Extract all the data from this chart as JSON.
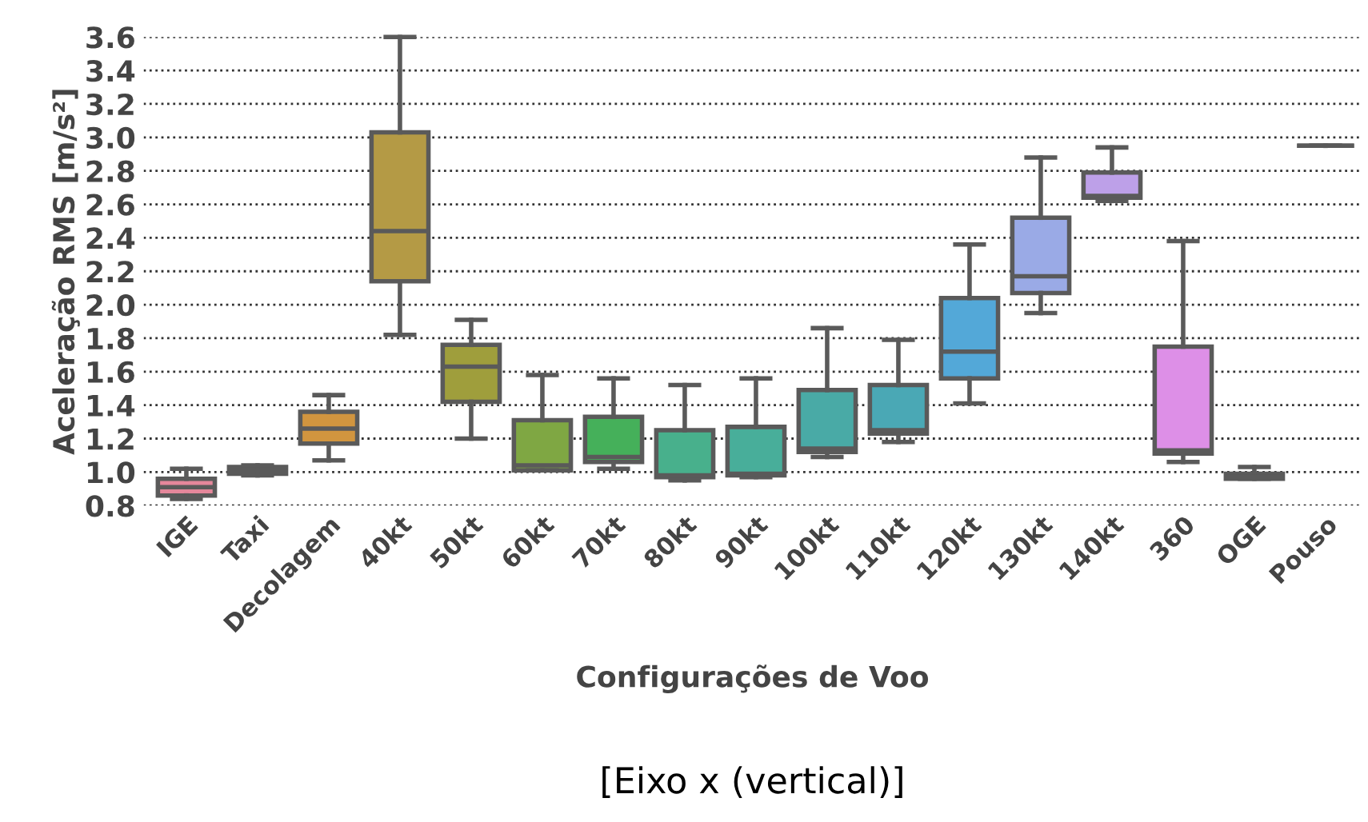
{
  "chart_data": {
    "type": "box",
    "xlabel": "Configurações de Voo",
    "ylabel": "Aceleração RMS [m/s²]",
    "annotations": [
      "[Eixo x (vertical)]"
    ],
    "categories": [
      "IGE",
      "Taxi",
      "Decolagem",
      "40kt",
      "50kt",
      "60kt",
      "70kt",
      "80kt",
      "90kt",
      "100kt",
      "110kt",
      "120kt",
      "130kt",
      "140kt",
      "360",
      "OGE",
      "Pouso"
    ],
    "colors": [
      "#e5879b",
      "#9b6b5c",
      "#d1953f",
      "#b49a45",
      "#9f9e3c",
      "#7fa743",
      "#45b05a",
      "#48b08c",
      "#48ae9a",
      "#49aaa6",
      "#4aa8b5",
      "#53a8d8",
      "#9aaae6",
      "#bda0e8",
      "#dd8fe7",
      "#e27dc2",
      "#5a5a5a"
    ],
    "boxes": [
      {
        "low": 0.84,
        "q1": 0.86,
        "median": 0.91,
        "q3": 0.96,
        "high": 1.02
      },
      {
        "low": 0.98,
        "q1": 0.99,
        "median": 1.01,
        "q3": 1.03,
        "high": 1.04
      },
      {
        "low": 1.07,
        "q1": 1.17,
        "median": 1.26,
        "q3": 1.36,
        "high": 1.46
      },
      {
        "low": 1.82,
        "q1": 2.14,
        "median": 2.44,
        "q3": 3.03,
        "high": 3.6
      },
      {
        "low": 1.2,
        "q1": 1.42,
        "median": 1.63,
        "q3": 1.76,
        "high": 1.91
      },
      {
        "low": 1.01,
        "q1": 1.01,
        "median": 1.04,
        "q3": 1.31,
        "high": 1.58
      },
      {
        "low": 1.02,
        "q1": 1.06,
        "median": 1.09,
        "q3": 1.33,
        "high": 1.56
      },
      {
        "low": 0.95,
        "q1": 0.97,
        "median": 0.98,
        "q3": 1.25,
        "high": 1.52
      },
      {
        "low": 0.97,
        "q1": 0.98,
        "median": 0.99,
        "q3": 1.27,
        "high": 1.56
      },
      {
        "low": 1.09,
        "q1": 1.12,
        "median": 1.14,
        "q3": 1.49,
        "high": 1.86
      },
      {
        "low": 1.18,
        "q1": 1.23,
        "median": 1.25,
        "q3": 1.52,
        "high": 1.79
      },
      {
        "low": 1.41,
        "q1": 1.56,
        "median": 1.72,
        "q3": 2.04,
        "high": 2.36
      },
      {
        "low": 1.95,
        "q1": 2.07,
        "median": 2.17,
        "q3": 2.52,
        "high": 2.88
      },
      {
        "low": 2.62,
        "q1": 2.64,
        "median": 2.65,
        "q3": 2.79,
        "high": 2.94
      },
      {
        "low": 1.06,
        "q1": 1.11,
        "median": 1.13,
        "q3": 1.75,
        "high": 2.38
      },
      {
        "low": 0.96,
        "q1": 0.96,
        "median": 0.97,
        "q3": 0.99,
        "high": 1.03
      },
      {
        "low": 2.95,
        "q1": 2.95,
        "median": 2.95,
        "q3": 2.95,
        "high": 2.95
      }
    ],
    "ylim": [
      0.8,
      3.6
    ],
    "yticks": [
      {
        "value": 0.8,
        "label": "0.8"
      },
      {
        "value": 1.0,
        "label": "1.0"
      },
      {
        "value": 1.2,
        "label": "1.2"
      },
      {
        "value": 1.4,
        "label": "1.4"
      },
      {
        "value": 1.6,
        "label": "1.6"
      },
      {
        "value": 1.8,
        "label": "1.8"
      },
      {
        "value": 2.0,
        "label": "2.0"
      },
      {
        "value": 2.2,
        "label": "2.2"
      },
      {
        "value": 2.4,
        "label": "2.4"
      },
      {
        "value": 2.6,
        "label": "2.6"
      },
      {
        "value": 2.8,
        "label": "2.8"
      },
      {
        "value": 3.0,
        "label": "3.0"
      },
      {
        "value": 3.2,
        "label": "3.2"
      },
      {
        "value": 3.4,
        "label": "3.4"
      },
      {
        "value": 3.6,
        "label": "3.6"
      }
    ],
    "grid": "y"
  }
}
